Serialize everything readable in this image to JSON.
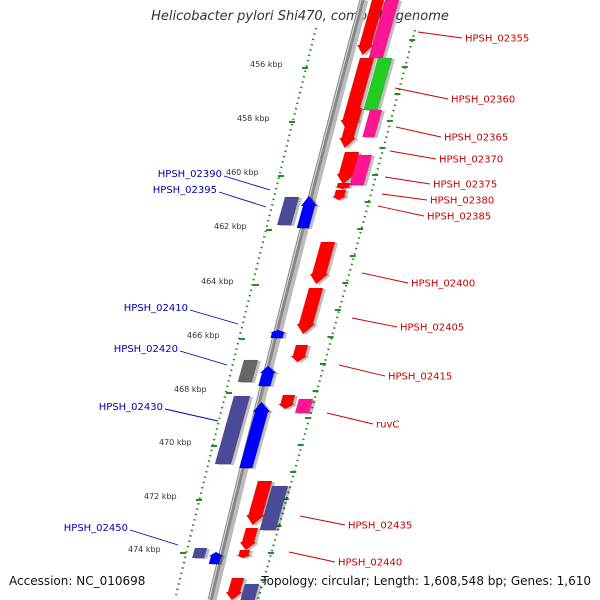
{
  "title": "Helicobacter pylori Shi470, complete genome",
  "accession": "Accession: NC_010698",
  "topology": "Topology: circular; Length: 1,608,548 bp; Genes: 1,610",
  "ticks": [
    "456 kbp",
    "458 kbp",
    "460 kbp",
    "462 kbp",
    "464 kbp",
    "466 kbp",
    "468 kbp",
    "470 kbp",
    "472 kbp",
    "474 kbp"
  ],
  "colors": {
    "forward_cds": "#ff0000",
    "reverse_cds": "#0000ff",
    "pink_feature": "#ff1493",
    "green_feature": "#22cc22",
    "purple_feature": "#4a4a99",
    "gray_feature": "#666666",
    "backbone": "#888888",
    "track_ruler": "#1f8f1f"
  },
  "right_labels": [
    "HPSH_02355",
    "HPSH_02360",
    "HPSH_02365",
    "HPSH_02370",
    "HPSH_02375",
    "HPSH_02380",
    "HPSH_02385",
    "HPSH_02400",
    "HPSH_02405",
    "HPSH_02415",
    "ruvC",
    "HPSH_02435",
    "HPSH_02440"
  ],
  "left_labels": [
    "HPSH_02390",
    "HPSH_02395",
    "HPSH_02410",
    "HPSH_02420",
    "HPSH_02430",
    "HPSH_02450"
  ]
}
